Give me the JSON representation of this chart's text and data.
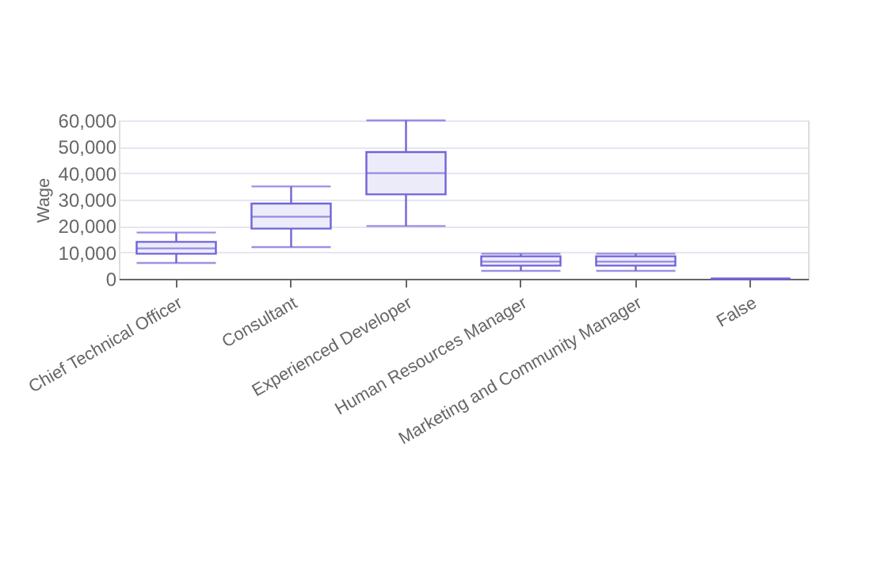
{
  "chart_data": {
    "type": "box",
    "ylabel": "Wage",
    "categories": [
      "Chief Technical Officer",
      "Consultant",
      "Experienced Developer",
      "Human Resources Manager",
      "Marketing and Community Manager",
      "False"
    ],
    "boxes": [
      {
        "low": 6000,
        "q1": 9500,
        "median": 11500,
        "q3": 14000,
        "high": 17500
      },
      {
        "low": 12000,
        "q1": 19000,
        "median": 23500,
        "q3": 28500,
        "high": 35000
      },
      {
        "low": 20000,
        "q1": 32000,
        "median": 40000,
        "q3": 48000,
        "high": 60000
      },
      {
        "low": 3000,
        "q1": 5000,
        "median": 6500,
        "q3": 8500,
        "high": 9500
      },
      {
        "low": 3000,
        "q1": 5000,
        "median": 6500,
        "q3": 8500,
        "high": 9500
      },
      {
        "low": 0,
        "q1": 0,
        "median": 0,
        "q3": 0,
        "high": 0
      }
    ],
    "color": "#7064d8",
    "ylim": [
      0,
      60000
    ],
    "yticks": [
      0,
      {
        "value": 10000,
        "label": "10,000"
      },
      {
        "value": 20000,
        "label": "20,000"
      },
      {
        "value": 30000,
        "label": "30,000"
      },
      {
        "value": 40000,
        "label": "40,000"
      },
      {
        "value": 50000,
        "label": "50,000"
      },
      {
        "value": 60000,
        "label": "60,000"
      }
    ],
    "grid": "y"
  }
}
